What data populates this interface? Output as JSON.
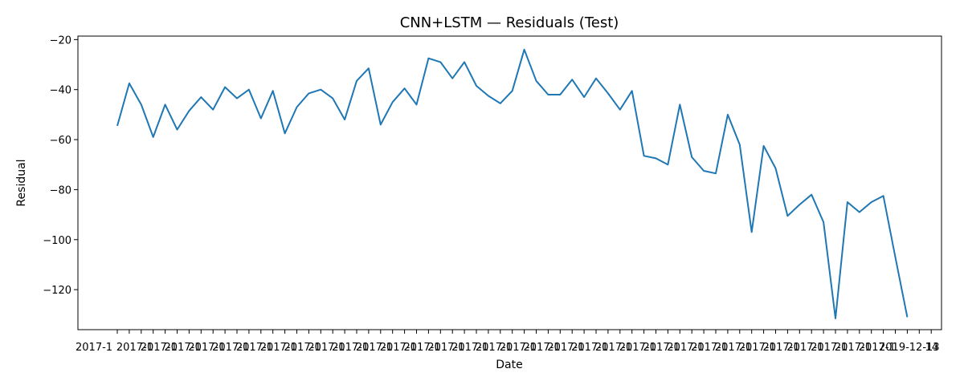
{
  "chart_data": {
    "type": "line",
    "title": "CNN+LSTM — Residuals (Test)",
    "xlabel": "Date",
    "ylabel": "Residual",
    "ylim": [
      -136,
      -18.6
    ],
    "yticks": [
      -20,
      -40,
      -60,
      -80,
      -100,
      -120
    ],
    "x_tick_labels_note": "Dense, overlapping date tick labels; partially legible: 2017-1, 2019-12-13, 14",
    "x_ticks_visible_text": [
      "2017-1",
      "2019-12-13",
      "14"
    ],
    "grid": false,
    "legend": "none",
    "series": [
      {
        "color": "#1f77b4",
        "values": [
          -54.5,
          -37.5,
          -46,
          -59,
          -46,
          -56,
          -48.5,
          -43,
          -48,
          -39,
          -43.5,
          -40,
          -51.5,
          -40.5,
          -57.5,
          -47,
          -41.5,
          -40,
          -43.5,
          -52,
          -36.5,
          -31.5,
          -54,
          -45,
          -39.5,
          -46,
          -27.5,
          -29,
          -35.5,
          -29,
          -38.5,
          -42.5,
          -45.5,
          -40.5,
          -24,
          -36.5,
          -42,
          -42,
          -36,
          -43,
          -35.5,
          -41.5,
          -48,
          -40.5,
          -66.5,
          -67.5,
          -70,
          -46,
          -67,
          -72.5,
          -73.5,
          -50,
          -62,
          -97,
          -62.5,
          -71.5,
          -90.5,
          -86,
          -82,
          -93,
          -131.5,
          -85,
          -89,
          -85,
          -82.5,
          -107,
          -131
        ]
      }
    ]
  }
}
